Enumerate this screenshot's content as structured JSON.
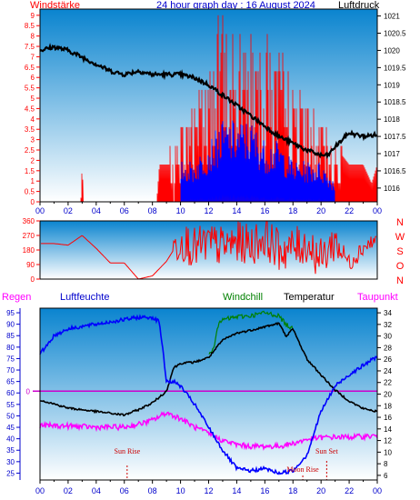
{
  "header": {
    "left_title": "Windstärke",
    "center_title": "24 hour graph day : 16 August 2024",
    "right_title": "Luftdruck"
  },
  "colors": {
    "wind_speed": "#ff0000",
    "wind_gust": "#0000ff",
    "pressure": "#000000",
    "wind_dir": "#ff0000",
    "temperature": "#000000",
    "humidity": "#0000ff",
    "windchill": "#008000",
    "dewpoint": "#ff00ff",
    "zero_line": "#cc00cc",
    "sun_marker": "#cc0000",
    "bg_top": "#0a84cf",
    "bg_bottom": "#ffffff",
    "frame": "#000000"
  },
  "bottom_header": {
    "regen": "Regen",
    "luftfeuchte": "Luftfeuchte",
    "windchill": "Windchill",
    "temperatur": "Temperatur",
    "taupunkt": "Taupunkt"
  },
  "chart_data": [
    {
      "type": "line",
      "name": "wind_pressure",
      "x_ticks": [
        "00",
        "02",
        "04",
        "06",
        "08",
        "10",
        "12",
        "14",
        "16",
        "18",
        "20",
        "22",
        "00"
      ],
      "y_left_ticks": [
        "0",
        "0.5",
        "1",
        "1.5",
        "2",
        "2.5",
        "3",
        "3.5",
        "4",
        "4.5",
        "5",
        "5.5",
        "6",
        "6.5",
        "7",
        "7.5",
        "8",
        "8.5",
        "9"
      ],
      "y_left_range": [
        0,
        9.3
      ],
      "y_right_ticks": [
        "1016",
        "1016.5",
        "1017",
        "1017.5",
        "1018",
        "1018.5",
        "1019",
        "1019.5",
        "1020",
        "1020.5",
        "1021"
      ],
      "y_right_range": [
        1015.6,
        1021.2
      ],
      "pressure": {
        "x_hours": [
          0,
          1,
          2,
          3,
          4,
          5,
          6,
          7,
          8,
          9,
          10,
          11,
          12,
          13,
          14,
          15,
          16,
          17,
          18,
          19,
          20,
          20.5,
          21,
          22,
          23,
          24
        ],
        "values": [
          1020.0,
          1020.1,
          1020.0,
          1019.8,
          1019.6,
          1019.4,
          1019.3,
          1019.4,
          1019.3,
          1019.3,
          1019.3,
          1019.2,
          1019.0,
          1018.7,
          1018.4,
          1018.1,
          1017.8,
          1017.5,
          1017.3,
          1017.1,
          1016.95,
          1016.95,
          1017.2,
          1017.6,
          1017.5,
          1017.55
        ]
      },
      "wind_speed": {
        "x_hours": [
          0,
          2.9,
          3.0,
          3.1,
          8.3,
          8.5,
          9,
          10,
          11,
          12,
          13,
          14,
          15,
          16,
          17,
          18,
          19,
          20,
          21,
          22,
          23,
          23.6,
          24
        ],
        "values": [
          0,
          0,
          1.8,
          0,
          0,
          1.8,
          1.8,
          3.6,
          5.4,
          7.2,
          9.0,
          7.2,
          9.0,
          9.0,
          7.2,
          5.4,
          4.5,
          3.6,
          2.7,
          1.8,
          1.8,
          0.9,
          1.8
        ]
      },
      "wind_gust": {
        "x_hours": [
          10,
          11,
          12,
          13,
          14,
          15,
          16,
          17,
          18,
          19,
          20,
          21
        ],
        "values": [
          1.8,
          1.8,
          2.7,
          3.6,
          3.6,
          3.6,
          2.7,
          2.7,
          1.8,
          1.8,
          1.8,
          0.9
        ]
      }
    },
    {
      "type": "line",
      "name": "wind_direction",
      "y_ticks": [
        "0",
        "90",
        "180",
        "270",
        "360"
      ],
      "y_range": [
        0,
        360
      ],
      "compass_labels": [
        "N",
        "W",
        "S",
        "O",
        "N"
      ],
      "x_hours": [
        0,
        1,
        2,
        3,
        4,
        5,
        6,
        7,
        8,
        9,
        10,
        11,
        12,
        13,
        14,
        15,
        16,
        17,
        18,
        19,
        20,
        21,
        22,
        23,
        24
      ],
      "values": [
        220,
        220,
        210,
        270,
        190,
        100,
        100,
        0,
        20,
        110,
        250,
        190,
        220,
        200,
        230,
        210,
        260,
        180,
        190,
        220,
        120,
        240,
        100,
        200,
        240
      ]
    },
    {
      "type": "line",
      "name": "temp_humidity",
      "x_ticks": [
        "00",
        "02",
        "04",
        "06",
        "08",
        "10",
        "12",
        "14",
        "16",
        "18",
        "20",
        "22",
        "00"
      ],
      "y_left_ticks": [
        "25",
        "30",
        "35",
        "40",
        "45",
        "50",
        "55",
        "60",
        "65",
        "70",
        "75",
        "80",
        "85",
        "90",
        "95"
      ],
      "y_left_range": [
        22,
        97
      ],
      "y_right_ticks": [
        "6",
        "8",
        "10",
        "12",
        "14",
        "16",
        "18",
        "20",
        "22",
        "24",
        "26",
        "28",
        "30",
        "32",
        "34"
      ],
      "y_right_range": [
        5.2,
        34.8
      ],
      "zero_label": "0",
      "zero_value": 20.5,
      "humidity": {
        "x_hours": [
          0,
          1,
          2,
          3,
          4,
          5,
          6,
          7,
          8,
          8.5,
          9,
          9.5,
          10,
          11,
          12,
          13,
          14,
          15,
          16,
          17,
          18,
          19,
          20,
          21,
          22,
          23,
          24
        ],
        "values": [
          77,
          85,
          88,
          89,
          90,
          91,
          92,
          93,
          93,
          91,
          65,
          65,
          63,
          55,
          45,
          35,
          27,
          26,
          27,
          25,
          26,
          33,
          52,
          63,
          68,
          72,
          76
        ]
      },
      "temperature": {
        "x_hours": [
          0,
          1,
          2,
          3,
          4,
          5,
          6,
          7,
          8,
          8.5,
          9,
          9.5,
          10,
          11,
          12,
          13,
          14,
          15,
          16,
          17,
          17.5,
          18,
          19,
          20,
          21,
          22,
          23,
          24
        ],
        "values": [
          19.0,
          18.3,
          17.6,
          17.3,
          17.0,
          16.7,
          16.4,
          17.3,
          18.5,
          19.5,
          20.5,
          24.5,
          25.3,
          25.5,
          26.3,
          29.3,
          30.5,
          31.0,
          31.6,
          32.2,
          30.0,
          31.2,
          26.0,
          23.3,
          20.7,
          18.8,
          17.5,
          17.0
        ]
      },
      "windchill": {
        "x_hours": [
          12,
          12.4,
          12.6,
          13,
          14,
          15,
          16,
          17,
          17.5,
          18
        ],
        "values": [
          26.3,
          28.5,
          31.5,
          32.8,
          33.3,
          33.5,
          34.0,
          33.5,
          32.0,
          31.2
        ]
      },
      "dewpoint": {
        "x_hours": [
          0,
          2,
          4,
          6,
          7,
          8,
          9,
          10,
          11,
          12,
          13,
          14,
          15,
          16,
          17,
          18,
          19,
          20,
          21,
          22,
          23,
          24
        ],
        "values": [
          14.6,
          14.5,
          14.3,
          14.3,
          14.8,
          15.5,
          16.8,
          15.8,
          14.3,
          13.2,
          12.0,
          11.3,
          11.0,
          11.0,
          11.0,
          11.5,
          12.2,
          12.5,
          12.6,
          12.6,
          12.7,
          12.8
        ]
      },
      "annotations": [
        {
          "text": "Sun Rise",
          "hour": 6.2
        },
        {
          "text": "Sun Set",
          "hour": 20.4
        },
        {
          "text": "Moon Rise",
          "hour": 18.7
        }
      ]
    }
  ]
}
